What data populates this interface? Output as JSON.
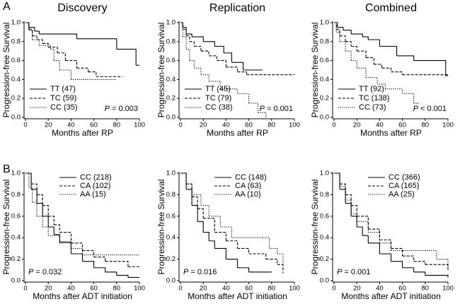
{
  "panel_labels": [
    "A",
    "B"
  ],
  "chart_data": [
    {
      "type": "km",
      "title": "Discovery",
      "x_label": "Months after RP",
      "y_label": "Progression-free Survival",
      "legend": "lower left",
      "annotation_symbol": "P",
      "annotation": "= 0.003",
      "xlim": [
        0,
        100
      ],
      "xticks": [
        0,
        20,
        40,
        60,
        80,
        100
      ],
      "ylim": [
        0,
        1
      ],
      "yticks": [
        {
          "value": 0,
          "label": "0.0"
        },
        {
          "value": 0.2,
          "label": "0.2"
        },
        {
          "value": 0.4,
          "label": "0.4"
        },
        {
          "value": 0.6,
          "label": "0.6"
        },
        {
          "value": 0.8,
          "label": "0.8"
        },
        {
          "value": 1,
          "label": "1.0"
        }
      ],
      "series": [
        {
          "name": "TT (47)",
          "color": "#000",
          "dash": "solid",
          "x": [
            0,
            3,
            8,
            12,
            45,
            80,
            97,
            100
          ],
          "values": [
            1,
            0.95,
            0.91,
            0.88,
            0.83,
            0.72,
            0.55,
            0.55
          ]
        },
        {
          "name": "TC (59)",
          "color": "#000",
          "dash": "dashed",
          "x": [
            0,
            3,
            6,
            10,
            15,
            20,
            28,
            35,
            45,
            55,
            62,
            85
          ],
          "values": [
            1,
            0.93,
            0.86,
            0.82,
            0.78,
            0.74,
            0.68,
            0.6,
            0.52,
            0.48,
            0.43,
            0.43
          ]
        },
        {
          "name": "CC (35)",
          "color": "#000",
          "dash": "dotted",
          "x": [
            0,
            3,
            6,
            12,
            22,
            25,
            30,
            40,
            80
          ],
          "values": [
            1,
            0.92,
            0.82,
            0.76,
            0.72,
            0.6,
            0.5,
            0.4,
            0.4
          ]
        }
      ]
    },
    {
      "type": "km",
      "title": "Replication",
      "x_label": "Months after RP",
      "y_label": "Progression-free Survival",
      "legend": "lower left",
      "annotation_symbol": "P",
      "annotation": "= 0.001",
      "xlim": [
        0,
        100
      ],
      "xticks": [
        0,
        20,
        40,
        60,
        80,
        100
      ],
      "ylim": [
        0,
        1
      ],
      "yticks": [
        {
          "value": 0,
          "label": "0.0"
        },
        {
          "value": 0.2,
          "label": "0.2"
        },
        {
          "value": 0.4,
          "label": "0.4"
        },
        {
          "value": 0.6,
          "label": "0.6"
        },
        {
          "value": 0.8,
          "label": "0.8"
        },
        {
          "value": 1,
          "label": "1.0"
        }
      ],
      "series": [
        {
          "name": "TT (45)",
          "color": "#000",
          "dash": "solid",
          "x": [
            0,
            2,
            5,
            10,
            20,
            30,
            38,
            45,
            55,
            72
          ],
          "values": [
            1,
            0.95,
            0.88,
            0.85,
            0.8,
            0.75,
            0.68,
            0.58,
            0.5,
            0.5
          ]
        },
        {
          "name": "TC (79)",
          "color": "#000",
          "dash": "dashed",
          "x": [
            0,
            2,
            5,
            8,
            12,
            18,
            25,
            32,
            40,
            50,
            58,
            100
          ],
          "values": [
            1,
            0.93,
            0.86,
            0.8,
            0.75,
            0.7,
            0.65,
            0.6,
            0.53,
            0.48,
            0.45,
            0.45
          ]
        },
        {
          "name": "CC (38)",
          "color": "#000",
          "dash": "dotted",
          "x": [
            0,
            2,
            5,
            8,
            12,
            18,
            25,
            35,
            50,
            60,
            68,
            75
          ],
          "values": [
            1,
            0.85,
            0.72,
            0.6,
            0.52,
            0.45,
            0.38,
            0.3,
            0.25,
            0.15,
            0.05,
            0
          ]
        }
      ]
    },
    {
      "type": "km",
      "title": "Combined",
      "x_label": "Months after RP",
      "y_label": "Progression-free Survival",
      "legend": "lower left",
      "annotation_symbol": "P",
      "annotation": "< 0.001",
      "xlim": [
        0,
        100
      ],
      "xticks": [
        0,
        20,
        40,
        60,
        80,
        100
      ],
      "ylim": [
        0,
        1
      ],
      "yticks": [
        {
          "value": 0,
          "label": "0.0"
        },
        {
          "value": 0.2,
          "label": "0.2"
        },
        {
          "value": 0.4,
          "label": "0.4"
        },
        {
          "value": 0.6,
          "label": "0.6"
        },
        {
          "value": 0.8,
          "label": "0.8"
        },
        {
          "value": 1,
          "label": "1.0"
        }
      ],
      "series": [
        {
          "name": "TT (92)",
          "color": "#000",
          "dash": "solid",
          "x": [
            0,
            3,
            8,
            15,
            25,
            30,
            40,
            55,
            70,
            98,
            100
          ],
          "values": [
            1,
            0.95,
            0.92,
            0.88,
            0.85,
            0.82,
            0.75,
            0.65,
            0.6,
            0.44,
            0.44
          ]
        },
        {
          "name": "TC (138)",
          "color": "#000",
          "dash": "dashed",
          "x": [
            0,
            2,
            5,
            10,
            15,
            20,
            28,
            35,
            42,
            50,
            60,
            100
          ],
          "values": [
            1,
            0.93,
            0.86,
            0.8,
            0.75,
            0.7,
            0.63,
            0.56,
            0.52,
            0.48,
            0.45,
            0.45
          ]
        },
        {
          "name": "CC (73)",
          "color": "#000",
          "dash": "dotted",
          "x": [
            0,
            2,
            5,
            10,
            15,
            20,
            28,
            38,
            45,
            60,
            70,
            75
          ],
          "values": [
            1,
            0.9,
            0.8,
            0.7,
            0.6,
            0.52,
            0.42,
            0.35,
            0.3,
            0.25,
            0.15,
            0.15
          ]
        }
      ]
    },
    {
      "type": "km",
      "x_label": "Months after ADT initiation",
      "y_label": "Progression-free Survival",
      "legend": "upper right",
      "annotation_symbol": "P",
      "annotation": "= 0.032",
      "xlim": [
        0,
        100
      ],
      "xticks": [
        0,
        20,
        40,
        60,
        80,
        100
      ],
      "ylim": [
        0,
        1
      ],
      "yticks": [
        {
          "value": 0,
          "label": "0.0"
        },
        {
          "value": 0.2,
          "label": "0.2"
        },
        {
          "value": 0.4,
          "label": "0.4"
        },
        {
          "value": 0.6,
          "label": "0.6"
        },
        {
          "value": 0.8,
          "label": "0.8"
        },
        {
          "value": 1,
          "label": "1.0"
        }
      ],
      "series": [
        {
          "name": "CC (218)",
          "color": "#000",
          "dash": "solid",
          "x": [
            0,
            5,
            10,
            15,
            20,
            25,
            30,
            40,
            50,
            60,
            70,
            80,
            90,
            100
          ],
          "values": [
            1,
            0.85,
            0.72,
            0.6,
            0.5,
            0.43,
            0.36,
            0.25,
            0.18,
            0.12,
            0.08,
            0.05,
            0.03,
            0.03
          ]
        },
        {
          "name": "CA (102)",
          "color": "#000",
          "dash": "dashed",
          "x": [
            0,
            5,
            10,
            15,
            20,
            25,
            30,
            40,
            50,
            60,
            70,
            90,
            100
          ],
          "values": [
            1,
            0.9,
            0.8,
            0.7,
            0.6,
            0.52,
            0.45,
            0.35,
            0.28,
            0.22,
            0.18,
            0.13,
            0.13
          ]
        },
        {
          "name": "AA (15)",
          "color": "#000",
          "dash": "dotted",
          "x": [
            0,
            3,
            6,
            10,
            15,
            20,
            30,
            40,
            50,
            100
          ],
          "values": [
            1,
            0.87,
            0.73,
            0.6,
            0.5,
            0.42,
            0.35,
            0.3,
            0.24,
            0.24
          ]
        }
      ]
    },
    {
      "type": "km",
      "x_label": "Months after ADT initiation",
      "y_label": "Progression-free Survival",
      "legend": "upper right",
      "annotation_symbol": "P",
      "annotation": "= 0.016",
      "xlim": [
        0,
        100
      ],
      "xticks": [
        0,
        20,
        40,
        60,
        80,
        100
      ],
      "ylim": [
        0,
        1
      ],
      "yticks": [
        {
          "value": 0,
          "label": "0.0"
        },
        {
          "value": 0.2,
          "label": "0.2"
        },
        {
          "value": 0.4,
          "label": "0.4"
        },
        {
          "value": 0.6,
          "label": "0.6"
        },
        {
          "value": 0.8,
          "label": "0.8"
        },
        {
          "value": 1,
          "label": "1.0"
        }
      ],
      "series": [
        {
          "name": "CC (148)",
          "color": "#000",
          "dash": "solid",
          "x": [
            0,
            5,
            10,
            15,
            20,
            25,
            30,
            40,
            50,
            60,
            80
          ],
          "values": [
            1,
            0.85,
            0.7,
            0.55,
            0.45,
            0.37,
            0.3,
            0.2,
            0.12,
            0.08,
            0.08
          ]
        },
        {
          "name": "CA (63)",
          "color": "#000",
          "dash": "dashed",
          "x": [
            0,
            5,
            10,
            15,
            20,
            30,
            40,
            50,
            60,
            75,
            85,
            90
          ],
          "values": [
            1,
            0.9,
            0.78,
            0.67,
            0.58,
            0.45,
            0.37,
            0.3,
            0.25,
            0.2,
            0.15,
            0.07
          ]
        },
        {
          "name": "AA (10)",
          "color": "#000",
          "dash": "dotted",
          "x": [
            0,
            5,
            10,
            18,
            25,
            35,
            45,
            72,
            78,
            85,
            90
          ],
          "values": [
            1,
            0.9,
            0.8,
            0.7,
            0.6,
            0.5,
            0.4,
            0.4,
            0.3,
            0.25,
            0.15
          ]
        }
      ]
    },
    {
      "type": "km",
      "x_label": "Months after ADT initiation",
      "y_label": "Progression-free Survival",
      "legend": "upper right",
      "annotation_symbol": "P",
      "annotation": "= 0.001",
      "xlim": [
        0,
        100
      ],
      "xticks": [
        0,
        20,
        40,
        60,
        80,
        100
      ],
      "ylim": [
        0,
        1
      ],
      "yticks": [
        {
          "value": 0,
          "label": "0.0"
        },
        {
          "value": 0.2,
          "label": "0.2"
        },
        {
          "value": 0.4,
          "label": "0.4"
        },
        {
          "value": 0.6,
          "label": "0.6"
        },
        {
          "value": 0.8,
          "label": "0.8"
        },
        {
          "value": 1,
          "label": "1.0"
        }
      ],
      "series": [
        {
          "name": "CC (366)",
          "color": "#000",
          "dash": "solid",
          "x": [
            0,
            5,
            10,
            15,
            20,
            25,
            30,
            40,
            50,
            60,
            70,
            80,
            100
          ],
          "values": [
            1,
            0.85,
            0.72,
            0.6,
            0.5,
            0.42,
            0.35,
            0.25,
            0.18,
            0.12,
            0.08,
            0.05,
            0.03
          ]
        },
        {
          "name": "CA (165)",
          "color": "#000",
          "dash": "dashed",
          "x": [
            0,
            5,
            10,
            15,
            20,
            30,
            40,
            50,
            60,
            70,
            80,
            100
          ],
          "values": [
            1,
            0.9,
            0.8,
            0.7,
            0.6,
            0.48,
            0.38,
            0.3,
            0.23,
            0.18,
            0.15,
            0.1
          ]
        },
        {
          "name": "AA (25)",
          "color": "#000",
          "dash": "dotted",
          "x": [
            0,
            5,
            10,
            15,
            20,
            30,
            40,
            50,
            80,
            90,
            100
          ],
          "values": [
            1,
            0.88,
            0.75,
            0.62,
            0.55,
            0.45,
            0.35,
            0.28,
            0.28,
            0.2,
            0.13
          ]
        }
      ]
    }
  ]
}
